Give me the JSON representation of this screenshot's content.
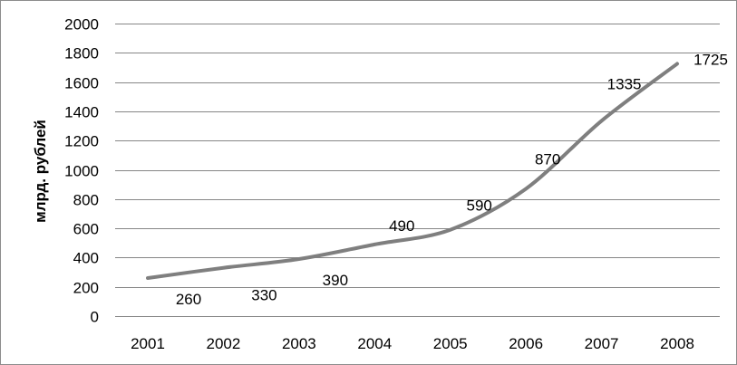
{
  "chart_data": {
    "type": "line",
    "title": "",
    "xlabel": "",
    "ylabel": "млрд. рублей",
    "ylim": [
      0,
      2000
    ],
    "yticks": [
      "0",
      "200",
      "400",
      "600",
      "800",
      "1000",
      "1200",
      "1400",
      "1600",
      "1800",
      "2000"
    ],
    "categories": [
      "2001",
      "2002",
      "2003",
      "2004",
      "2005",
      "2006",
      "2007",
      "2008"
    ],
    "series": [
      {
        "values": [
          260,
          330,
          390,
          490,
          590,
          870,
          1335,
          1725
        ],
        "labels": [
          "260",
          "330",
          "390",
          "490",
          "590",
          "870",
          "1335",
          "1725"
        ]
      }
    ],
    "grid": true,
    "legend": "none",
    "line_color": "#7f7f7f",
    "grid_color": "#868686"
  }
}
